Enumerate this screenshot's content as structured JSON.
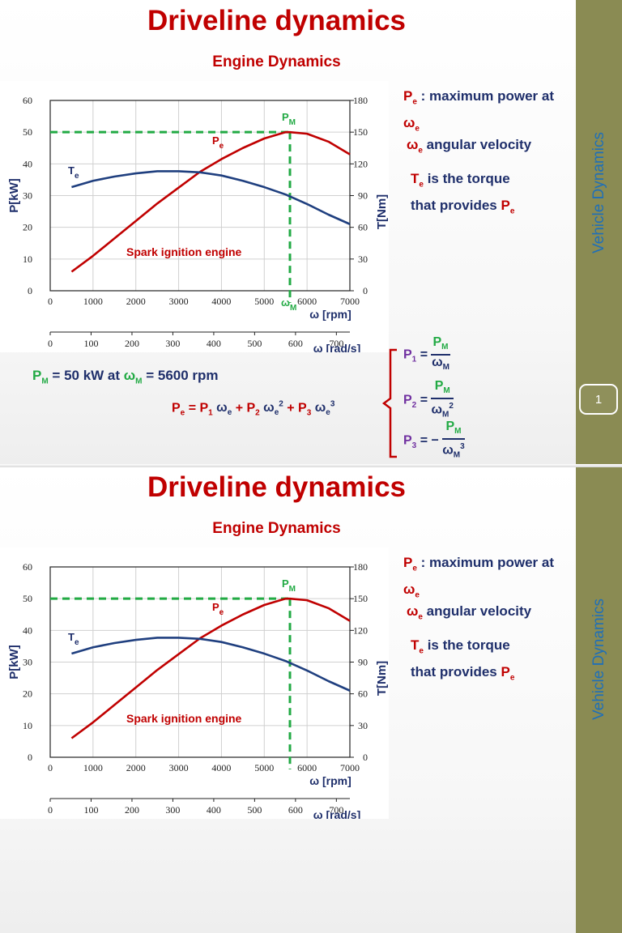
{
  "slides": [
    {
      "title": "Driveline dynamics",
      "subtitle": "Engine Dynamics",
      "sidebar_text": "Vehicle Dynamics",
      "page_number": "1",
      "show_formulas": true,
      "show_wm_label": true
    },
    {
      "title": "Driveline dynamics",
      "subtitle": "Engine Dynamics",
      "sidebar_text": "Vehicle Dynamics",
      "page_number": "",
      "show_formulas": false,
      "show_wm_label": false
    }
  ],
  "notes": {
    "pe_desc": ": maximum power at",
    "we_desc": "angular velocity",
    "te_desc_1": "is the torque",
    "te_desc_2": "that provides",
    "symbol_P": "P",
    "symbol_T": "T",
    "symbol_w": "ω",
    "sub_e": "e",
    "sub_M": "M"
  },
  "formulas": {
    "pm_text": "= 50 kW at",
    "pm_value": "= 5600 rpm",
    "pe_lhs": "P",
    "p1_label": "P",
    "p1_sub": "1",
    "p2_label": "P",
    "p2_sub": "2",
    "p3_label": "P",
    "p3_sub": "3",
    "eq": "=",
    "minus": "= −",
    "num": "P",
    "den": "ω",
    "sq": "2",
    "cube": "3"
  },
  "chart_data": {
    "type": "line",
    "annotation": "Spark ignition engine",
    "x_rpm": {
      "label": "ω [rpm]",
      "min": 0,
      "max": 7000,
      "ticks": [
        0,
        1000,
        2000,
        3000,
        4000,
        5000,
        6000,
        7000
      ]
    },
    "x_rads": {
      "label": "ω [rad/s]",
      "min": 0,
      "max": 733,
      "ticks": [
        0,
        100,
        200,
        300,
        400,
        500,
        600,
        700
      ]
    },
    "y_left": {
      "label": "P[kW]",
      "min": 0,
      "max": 60,
      "ticks": [
        0,
        10,
        20,
        30,
        40,
        50,
        60
      ]
    },
    "y_right": {
      "label": "T[Nm]",
      "min": 0,
      "max": 180,
      "ticks": [
        0,
        30,
        60,
        90,
        120,
        150,
        180
      ]
    },
    "grid": true,
    "max_point": {
      "rpm": 5600,
      "power": 50,
      "label_P": "P",
      "label_sub": "M",
      "label_w": "ω"
    },
    "series": [
      {
        "name": "P",
        "name_sub": "e",
        "axis": "left",
        "color": "#c00000",
        "x": [
          500,
          1000,
          1500,
          2000,
          2500,
          3000,
          3500,
          4000,
          4500,
          5000,
          5500,
          5600,
          6000,
          6500,
          7000
        ],
        "y": [
          6,
          11,
          16.5,
          22,
          27.5,
          32.5,
          37.5,
          41.5,
          45,
          48,
          50,
          50,
          49.5,
          47,
          43
        ]
      },
      {
        "name": "T",
        "name_sub": "e",
        "axis": "right",
        "color": "#1f3f7f",
        "x": [
          500,
          1000,
          1500,
          2000,
          2500,
          3000,
          3500,
          4000,
          4500,
          5000,
          5500,
          6000,
          6500,
          7000
        ],
        "y": [
          98,
          104,
          108,
          111,
          113,
          113,
          112,
          109,
          104,
          98,
          91,
          82,
          72,
          63
        ]
      }
    ]
  }
}
